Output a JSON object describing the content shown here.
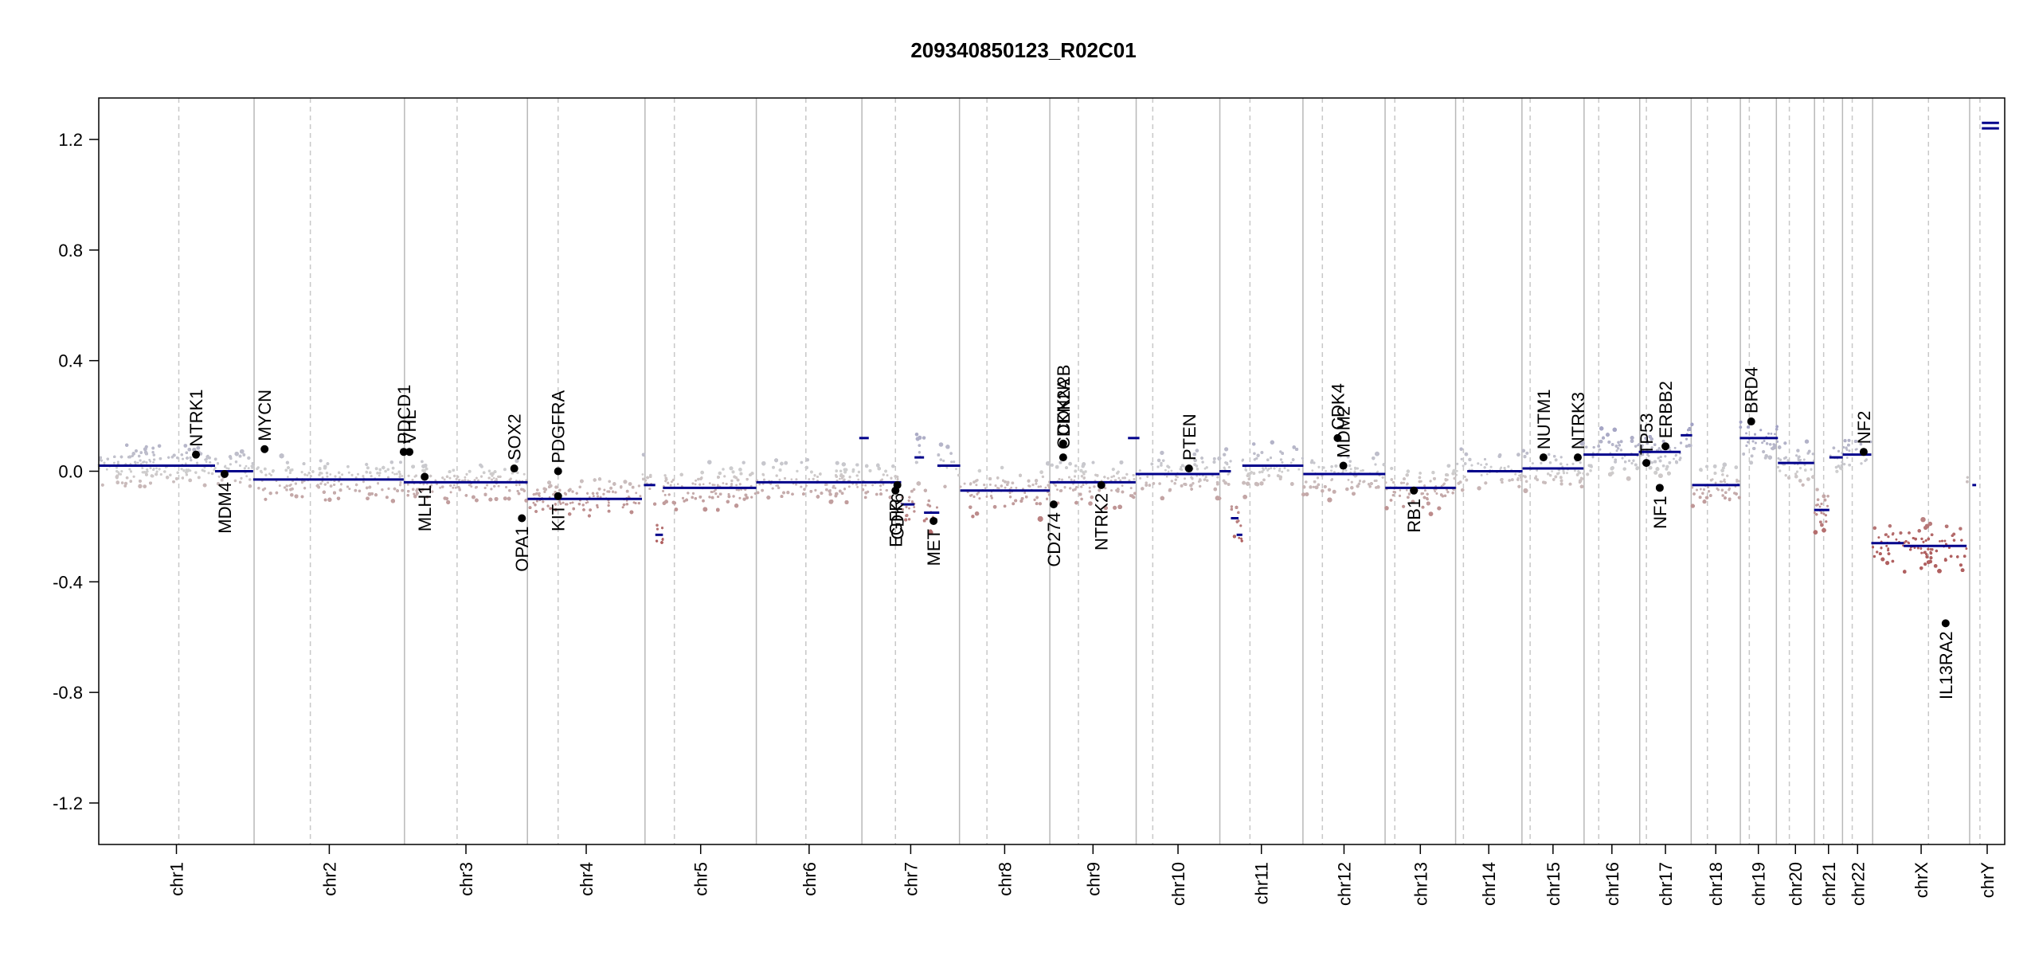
{
  "chart_data": {
    "type": "scatter",
    "title": "209340850123_R02C01",
    "xlabel": "",
    "ylabel": "",
    "ylim": [
      -1.35,
      1.35
    ],
    "y_ticks": [
      -1.2,
      -0.8,
      -0.4,
      0.0,
      0.4,
      0.8,
      1.2
    ],
    "y_tick_labels": [
      "-1.2",
      "-0.8",
      "-0.4",
      "0.0",
      "0.4",
      "0.8",
      "1.2"
    ],
    "grid": false,
    "colors": {
      "gain": "#8b8bbf",
      "neutral": "#cfcfcf",
      "loss": "#b06060",
      "segment": "#00008b",
      "gene": "#000000"
    },
    "chromosomes": [
      {
        "name": "chr1",
        "start": 0,
        "end": 0.0815
      },
      {
        "name": "chr2",
        "start": 0.0815,
        "end": 0.1604
      },
      {
        "name": "chr3",
        "start": 0.1604,
        "end": 0.2249
      },
      {
        "name": "chr4",
        "start": 0.2249,
        "end": 0.2866
      },
      {
        "name": "chr5",
        "start": 0.2866,
        "end": 0.345
      },
      {
        "name": "chr6",
        "start": 0.345,
        "end": 0.4004
      },
      {
        "name": "chr7",
        "start": 0.4004,
        "end": 0.4516
      },
      {
        "name": "chr8",
        "start": 0.4516,
        "end": 0.499
      },
      {
        "name": "chr9",
        "start": 0.499,
        "end": 0.5443
      },
      {
        "name": "chr10",
        "start": 0.5443,
        "end": 0.5882
      },
      {
        "name": "chr11",
        "start": 0.5882,
        "end": 0.6318
      },
      {
        "name": "chr12",
        "start": 0.6318,
        "end": 0.6749
      },
      {
        "name": "chr13",
        "start": 0.6749,
        "end": 0.7119
      },
      {
        "name": "chr14",
        "start": 0.7119,
        "end": 0.7467
      },
      {
        "name": "chr15",
        "start": 0.7467,
        "end": 0.7793
      },
      {
        "name": "chr16",
        "start": 0.7793,
        "end": 0.8085
      },
      {
        "name": "chr17",
        "start": 0.8085,
        "end": 0.8355
      },
      {
        "name": "chr18",
        "start": 0.8355,
        "end": 0.8613
      },
      {
        "name": "chr19",
        "start": 0.8613,
        "end": 0.8802
      },
      {
        "name": "chr20",
        "start": 0.8802,
        "end": 0.9002
      },
      {
        "name": "chr21",
        "start": 0.9002,
        "end": 0.9149
      },
      {
        "name": "chr22",
        "start": 0.9149,
        "end": 0.9307
      },
      {
        "name": "chrX",
        "start": 0.9307,
        "end": 0.9816
      },
      {
        "name": "chrY",
        "start": 0.9816,
        "end": 1.0
      }
    ],
    "centromeres": [
      0.042,
      0.111,
      0.188,
      0.241,
      0.302,
      0.371,
      0.418,
      0.466,
      0.514,
      0.553,
      0.604,
      0.642,
      0.68,
      0.716,
      0.751,
      0.787,
      0.812,
      0.844,
      0.866,
      0.887,
      0.905,
      0.92,
      0.96,
      0.987
    ],
    "segments": [
      {
        "x0": 0.0,
        "x1": 0.061,
        "y": 0.02
      },
      {
        "x0": 0.061,
        "x1": 0.081,
        "y": 0.0
      },
      {
        "x0": 0.081,
        "x1": 0.16,
        "y": -0.03
      },
      {
        "x0": 0.16,
        "x1": 0.225,
        "y": -0.04
      },
      {
        "x0": 0.225,
        "x1": 0.285,
        "y": -0.1
      },
      {
        "x0": 0.286,
        "x1": 0.292,
        "y": -0.05
      },
      {
        "x0": 0.292,
        "x1": 0.296,
        "y": -0.23
      },
      {
        "x0": 0.296,
        "x1": 0.345,
        "y": -0.06
      },
      {
        "x0": 0.345,
        "x1": 0.4,
        "y": -0.04
      },
      {
        "x0": 0.399,
        "x1": 0.404,
        "y": 0.12
      },
      {
        "x0": 0.4,
        "x1": 0.421,
        "y": -0.04
      },
      {
        "x0": 0.421,
        "x1": 0.428,
        "y": -0.12
      },
      {
        "x0": 0.428,
        "x1": 0.433,
        "y": 0.05
      },
      {
        "x0": 0.433,
        "x1": 0.441,
        "y": -0.15
      },
      {
        "x0": 0.44,
        "x1": 0.452,
        "y": 0.02
      },
      {
        "x0": 0.452,
        "x1": 0.499,
        "y": -0.07
      },
      {
        "x0": 0.499,
        "x1": 0.544,
        "y": -0.04
      },
      {
        "x0": 0.54,
        "x1": 0.546,
        "y": 0.12
      },
      {
        "x0": 0.544,
        "x1": 0.588,
        "y": -0.01
      },
      {
        "x0": 0.588,
        "x1": 0.594,
        "y": 0.0
      },
      {
        "x0": 0.594,
        "x1": 0.598,
        "y": -0.17
      },
      {
        "x0": 0.597,
        "x1": 0.6,
        "y": -0.23
      },
      {
        "x0": 0.6,
        "x1": 0.632,
        "y": 0.02
      },
      {
        "x0": 0.632,
        "x1": 0.675,
        "y": -0.01
      },
      {
        "x0": 0.675,
        "x1": 0.712,
        "y": -0.06
      },
      {
        "x0": 0.718,
        "x1": 0.747,
        "y": 0.0
      },
      {
        "x0": 0.747,
        "x1": 0.779,
        "y": 0.01
      },
      {
        "x0": 0.779,
        "x1": 0.808,
        "y": 0.06
      },
      {
        "x0": 0.808,
        "x1": 0.83,
        "y": 0.07
      },
      {
        "x0": 0.83,
        "x1": 0.836,
        "y": 0.13
      },
      {
        "x0": 0.836,
        "x1": 0.861,
        "y": -0.05
      },
      {
        "x0": 0.861,
        "x1": 0.881,
        "y": 0.12
      },
      {
        "x0": 0.881,
        "x1": 0.9,
        "y": 0.03
      },
      {
        "x0": 0.9,
        "x1": 0.908,
        "y": -0.14
      },
      {
        "x0": 0.908,
        "x1": 0.915,
        "y": 0.05
      },
      {
        "x0": 0.915,
        "x1": 0.93,
        "y": 0.06
      },
      {
        "x0": 0.93,
        "x1": 0.947,
        "y": -0.26
      },
      {
        "x0": 0.947,
        "x1": 0.98,
        "y": -0.27
      },
      {
        "x0": 0.983,
        "x1": 0.985,
        "y": -0.05
      },
      {
        "x0": 0.988,
        "x1": 0.997,
        "y": 1.26
      },
      {
        "x0": 0.988,
        "x1": 0.997,
        "y": 1.24
      }
    ],
    "genes": [
      {
        "name": "NTRK1",
        "x": 0.051,
        "y": 0.06,
        "label_side": "above"
      },
      {
        "name": "MDM4",
        "x": 0.066,
        "y": -0.01,
        "label_side": "below"
      },
      {
        "name": "MYCN",
        "x": 0.087,
        "y": 0.08,
        "label_side": "above"
      },
      {
        "name": "PDCD1",
        "x": 0.16,
        "y": 0.07,
        "label_side": "above"
      },
      {
        "name": "VHL",
        "x": 0.163,
        "y": 0.07,
        "label_side": "above"
      },
      {
        "name": "MLH1",
        "x": 0.171,
        "y": -0.02,
        "label_side": "below"
      },
      {
        "name": "SOX2",
        "x": 0.218,
        "y": 0.01,
        "label_side": "above"
      },
      {
        "name": "OPA1",
        "x": 0.222,
        "y": -0.17,
        "label_side": "below"
      },
      {
        "name": "PDGFRA",
        "x": 0.241,
        "y": 0.0,
        "label_side": "above"
      },
      {
        "name": "KIT",
        "x": 0.241,
        "y": -0.09,
        "label_side": "below"
      },
      {
        "name": "EGFR",
        "x": 0.418,
        "y": -0.07,
        "label_side": "below"
      },
      {
        "name": "CDK6",
        "x": 0.419,
        "y": -0.05,
        "label_side": "below"
      },
      {
        "name": "MET",
        "x": 0.438,
        "y": -0.18,
        "label_side": "below"
      },
      {
        "name": "CD274",
        "x": 0.501,
        "y": -0.12,
        "label_side": "below"
      },
      {
        "name": "CDKN2A",
        "x": 0.506,
        "y": 0.05,
        "label_side": "above"
      },
      {
        "name": "CDKN2B",
        "x": 0.506,
        "y": 0.1,
        "label_side": "above"
      },
      {
        "name": "NTRK2",
        "x": 0.526,
        "y": -0.05,
        "label_side": "below"
      },
      {
        "name": "PTEN",
        "x": 0.572,
        "y": 0.01,
        "label_side": "above"
      },
      {
        "name": "CDK4",
        "x": 0.65,
        "y": 0.12,
        "label_side": "above"
      },
      {
        "name": "MDM2",
        "x": 0.653,
        "y": 0.02,
        "label_side": "above"
      },
      {
        "name": "RB1",
        "x": 0.69,
        "y": -0.07,
        "label_side": "below"
      },
      {
        "name": "NUTM1",
        "x": 0.758,
        "y": 0.05,
        "label_side": "above"
      },
      {
        "name": "NTRK3",
        "x": 0.776,
        "y": 0.05,
        "label_side": "above"
      },
      {
        "name": "TP53",
        "x": 0.812,
        "y": 0.03,
        "label_side": "above"
      },
      {
        "name": "NF1",
        "x": 0.819,
        "y": -0.06,
        "label_side": "below"
      },
      {
        "name": "ERBB2",
        "x": 0.822,
        "y": 0.09,
        "label_side": "above"
      },
      {
        "name": "BRD4",
        "x": 0.867,
        "y": 0.18,
        "label_side": "above"
      },
      {
        "name": "NF2",
        "x": 0.926,
        "y": 0.07,
        "label_side": "above"
      },
      {
        "name": "IL13RA2",
        "x": 0.969,
        "y": -0.55,
        "label_side": "below"
      }
    ]
  }
}
